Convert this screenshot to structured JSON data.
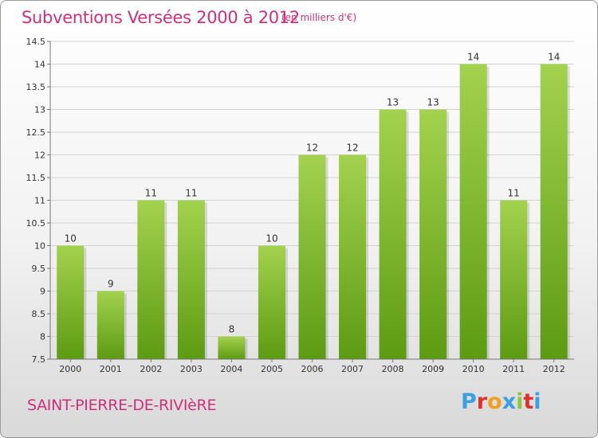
{
  "header": {
    "title": "Subventions Versées 2000 à 2012",
    "unit": "(en milliers d'€)"
  },
  "footer": {
    "commune": "SAINT-PIERRE-DE-RIVIèRE",
    "logo_text": "Proxiti",
    "logo_colors": [
      "#3aa0e0",
      "#e0302a",
      "#f0a020",
      "#3aa0e0",
      "#8cc63f",
      "#e0302a",
      "#3aa0e0"
    ]
  },
  "colors": {
    "title": "#d0307a",
    "bar_light": "#9fd14a",
    "bar_dark": "#5f9e14"
  },
  "chart_data": {
    "type": "bar",
    "title": "Subventions Versées 2000 à 2012",
    "subtitle": "(en milliers d'€)",
    "categories": [
      "2000",
      "2001",
      "2002",
      "2003",
      "2004",
      "2005",
      "2006",
      "2007",
      "2008",
      "2009",
      "2010",
      "2011",
      "2012"
    ],
    "values": [
      10,
      9,
      11,
      11,
      8,
      10,
      12,
      12,
      13,
      13,
      14,
      11,
      14
    ],
    "ylim": [
      7.5,
      14.5
    ],
    "yticks": [
      "7.5",
      "8",
      "8.5",
      "9",
      "9.5",
      "10",
      "10.5",
      "11",
      "11.5",
      "12",
      "12.5",
      "13",
      "13.5",
      "14",
      "14.5"
    ],
    "grid": true
  }
}
